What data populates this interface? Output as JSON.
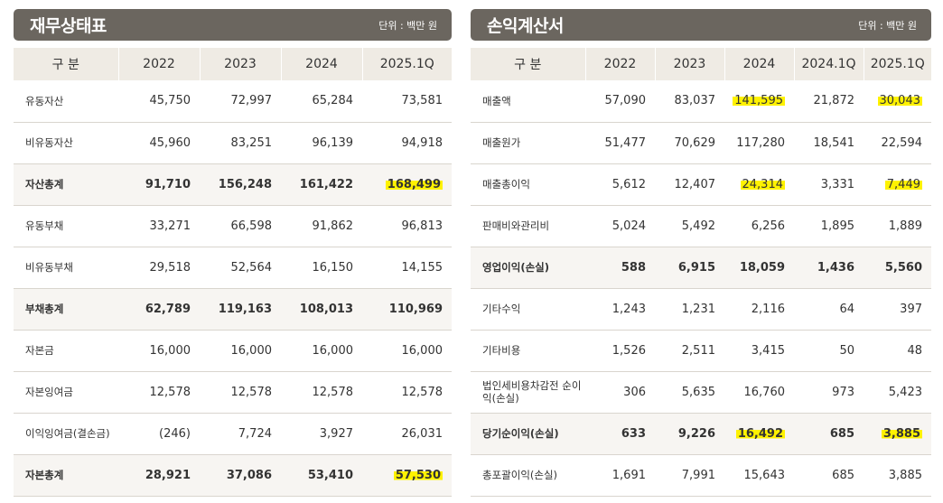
{
  "left": {
    "title": "재무상태표",
    "unit": "단위 : 백만 원",
    "columns": [
      "구 분",
      "2022",
      "2023",
      "2024",
      "2025.1Q"
    ],
    "rows": [
      {
        "label": "유동자산",
        "values": [
          "45,750",
          "72,997",
          "65,284",
          "73,581"
        ],
        "bold": false,
        "highlight": []
      },
      {
        "label": "비유동자산",
        "values": [
          "45,960",
          "83,251",
          "96,139",
          "94,918"
        ],
        "bold": false,
        "highlight": []
      },
      {
        "label": "자산총계",
        "values": [
          "91,710",
          "156,248",
          "161,422",
          "168,499"
        ],
        "bold": true,
        "highlight": [
          3
        ]
      },
      {
        "label": "유동부채",
        "values": [
          "33,271",
          "66,598",
          "91,862",
          "96,813"
        ],
        "bold": false,
        "highlight": []
      },
      {
        "label": "비유동부채",
        "values": [
          "29,518",
          "52,564",
          "16,150",
          "14,155"
        ],
        "bold": false,
        "highlight": []
      },
      {
        "label": "부채총계",
        "values": [
          "62,789",
          "119,163",
          "108,013",
          "110,969"
        ],
        "bold": true,
        "highlight": []
      },
      {
        "label": "자본금",
        "values": [
          "16,000",
          "16,000",
          "16,000",
          "16,000"
        ],
        "bold": false,
        "highlight": []
      },
      {
        "label": "자본잉여금",
        "values": [
          "12,578",
          "12,578",
          "12,578",
          "12,578"
        ],
        "bold": false,
        "highlight": []
      },
      {
        "label": "이익잉여금(결손금)",
        "values": [
          "(246)",
          "7,724",
          "3,927",
          "26,031"
        ],
        "bold": false,
        "highlight": []
      },
      {
        "label": "자본총계",
        "values": [
          "28,921",
          "37,086",
          "53,410",
          "57,530"
        ],
        "bold": true,
        "highlight": [
          3
        ]
      }
    ]
  },
  "right": {
    "title": "손익계산서",
    "unit": "단위 : 백만 원",
    "columns": [
      "구 분",
      "2022",
      "2023",
      "2024",
      "2024.1Q",
      "2025.1Q"
    ],
    "rows": [
      {
        "label": "매출액",
        "values": [
          "57,090",
          "83,037",
          "141,595",
          "21,872",
          "30,043"
        ],
        "bold": false,
        "highlight": [
          2,
          4
        ]
      },
      {
        "label": "매출원가",
        "values": [
          "51,477",
          "70,629",
          "117,280",
          "18,541",
          "22,594"
        ],
        "bold": false,
        "highlight": []
      },
      {
        "label": "매출총이익",
        "values": [
          "5,612",
          "12,407",
          "24,314",
          "3,331",
          "7,449"
        ],
        "bold": false,
        "highlight": [
          2,
          4
        ]
      },
      {
        "label": "판매비와관리비",
        "values": [
          "5,024",
          "5,492",
          "6,256",
          "1,895",
          "1,889"
        ],
        "bold": false,
        "highlight": []
      },
      {
        "label": "영업이익(손실)",
        "values": [
          "588",
          "6,915",
          "18,059",
          "1,436",
          "5,560"
        ],
        "bold": true,
        "highlight": []
      },
      {
        "label": "기타수익",
        "values": [
          "1,243",
          "1,231",
          "2,116",
          "64",
          "397"
        ],
        "bold": false,
        "highlight": []
      },
      {
        "label": "기타비용",
        "values": [
          "1,526",
          "2,511",
          "3,415",
          "50",
          "48"
        ],
        "bold": false,
        "highlight": []
      },
      {
        "label": "법인세비용차감전 순이익(손실)",
        "values": [
          "306",
          "5,635",
          "16,760",
          "973",
          "5,423"
        ],
        "bold": false,
        "highlight": []
      },
      {
        "label": "당기순이익(손실)",
        "values": [
          "633",
          "9,226",
          "16,492",
          "685",
          "3,885"
        ],
        "bold": true,
        "highlight": [
          2,
          4
        ]
      },
      {
        "label": "총포괄이익(손실)",
        "values": [
          "1,691",
          "7,991",
          "15,643",
          "685",
          "3,885"
        ],
        "bold": false,
        "highlight": []
      }
    ]
  }
}
